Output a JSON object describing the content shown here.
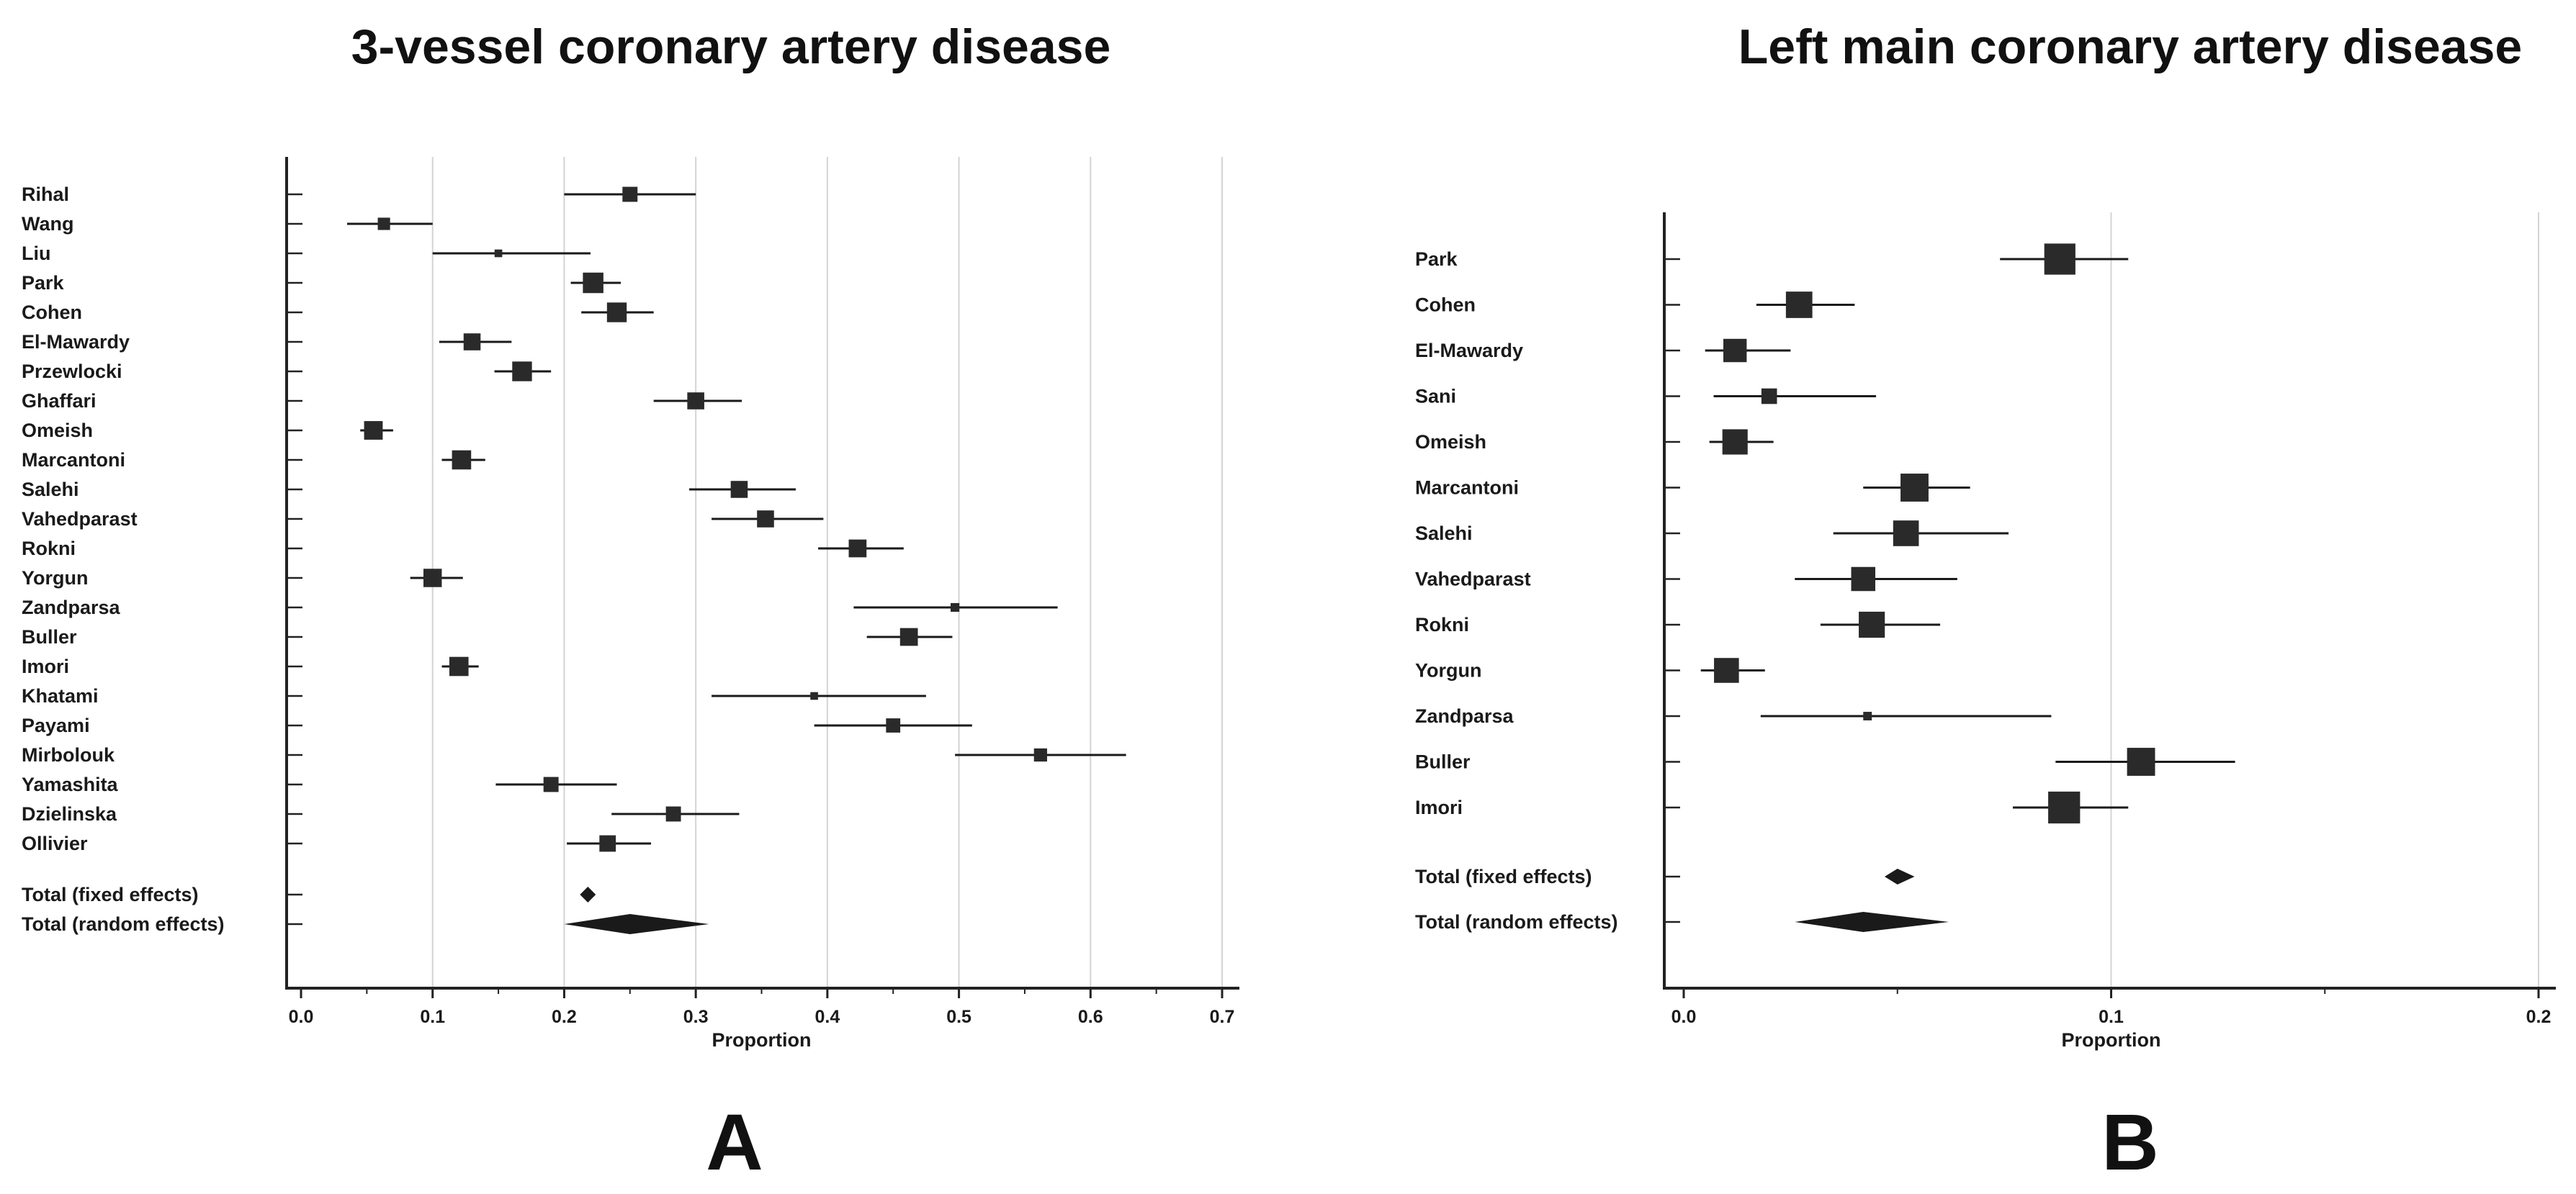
{
  "chart_data": [
    {
      "type": "forest",
      "panel_label": "A",
      "title": "3-vessel coronary artery disease",
      "xlabel": "Proportion",
      "xlim": [
        0,
        0.72
      ],
      "xticks": [
        "0.0",
        "0.1",
        "0.2",
        "0.3",
        "0.4",
        "0.5",
        "0.6",
        "0.7"
      ],
      "grid": "vertical",
      "studies": [
        {
          "name": "Rihal",
          "estimate": 0.25,
          "ci": [
            0.2,
            0.3
          ]
        },
        {
          "name": "Wang",
          "estimate": 0.063,
          "ci": [
            0.035,
            0.1
          ]
        },
        {
          "name": "Liu",
          "estimate": 0.15,
          "ci": [
            0.1,
            0.22
          ]
        },
        {
          "name": "Park",
          "estimate": 0.222,
          "ci": [
            0.205,
            0.243
          ]
        },
        {
          "name": "Cohen",
          "estimate": 0.24,
          "ci": [
            0.213,
            0.268
          ]
        },
        {
          "name": "El-Mawardy",
          "estimate": 0.13,
          "ci": [
            0.105,
            0.16
          ]
        },
        {
          "name": "Przewlocki",
          "estimate": 0.168,
          "ci": [
            0.147,
            0.19
          ]
        },
        {
          "name": "Ghaffari",
          "estimate": 0.3,
          "ci": [
            0.268,
            0.335
          ]
        },
        {
          "name": "Omeish",
          "estimate": 0.055,
          "ci": [
            0.045,
            0.07
          ]
        },
        {
          "name": "Marcantoni",
          "estimate": 0.122,
          "ci": [
            0.107,
            0.14
          ]
        },
        {
          "name": "Salehi",
          "estimate": 0.333,
          "ci": [
            0.295,
            0.376
          ]
        },
        {
          "name": "Vahedparast",
          "estimate": 0.353,
          "ci": [
            0.312,
            0.397
          ]
        },
        {
          "name": "Rokni",
          "estimate": 0.423,
          "ci": [
            0.393,
            0.458
          ]
        },
        {
          "name": "Yorgun",
          "estimate": 0.1,
          "ci": [
            0.083,
            0.123
          ]
        },
        {
          "name": "Zandparsa",
          "estimate": 0.497,
          "ci": [
            0.42,
            0.575
          ]
        },
        {
          "name": "Buller",
          "estimate": 0.462,
          "ci": [
            0.43,
            0.495
          ]
        },
        {
          "name": "Imori",
          "estimate": 0.12,
          "ci": [
            0.107,
            0.135
          ]
        },
        {
          "name": "Khatami",
          "estimate": 0.39,
          "ci": [
            0.312,
            0.475
          ]
        },
        {
          "name": "Payami",
          "estimate": 0.45,
          "ci": [
            0.39,
            0.51
          ]
        },
        {
          "name": "Mirbolouk",
          "estimate": 0.562,
          "ci": [
            0.497,
            0.627
          ]
        },
        {
          "name": "Yamashita",
          "estimate": 0.19,
          "ci": [
            0.148,
            0.24
          ]
        },
        {
          "name": "Dzielinska",
          "estimate": 0.283,
          "ci": [
            0.236,
            0.333
          ]
        },
        {
          "name": "Ollivier",
          "estimate": 0.233,
          "ci": [
            0.202,
            0.266
          ]
        }
      ],
      "weights": [
        0.55,
        0.45,
        0.28,
        0.75,
        0.72,
        0.62,
        0.72,
        0.62,
        0.68,
        0.7,
        0.62,
        0.62,
        0.65,
        0.67,
        0.32,
        0.65,
        0.7,
        0.28,
        0.52,
        0.48,
        0.55,
        0.55,
        0.6
      ],
      "summaries": [
        {
          "name": "Total (fixed effects)",
          "estimate": 0.218,
          "ci": [
            0.212,
            0.224
          ]
        },
        {
          "name": "Total (random effects)",
          "estimate": 0.25,
          "ci": [
            0.2,
            0.31
          ]
        }
      ]
    },
    {
      "type": "forest",
      "panel_label": "B",
      "title": "Left main coronary artery disease",
      "xlabel": "Proportion",
      "xlim": [
        0,
        0.205
      ],
      "xticks": [
        "0.0",
        "0.1",
        "0.2"
      ],
      "grid": "vertical",
      "studies": [
        {
          "name": "Park",
          "estimate": 0.088,
          "ci": [
            0.074,
            0.104
          ]
        },
        {
          "name": "Cohen",
          "estimate": 0.027,
          "ci": [
            0.017,
            0.04
          ]
        },
        {
          "name": "El-Mawardy",
          "estimate": 0.012,
          "ci": [
            0.005,
            0.025
          ]
        },
        {
          "name": "Sani",
          "estimate": 0.02,
          "ci": [
            0.007,
            0.045
          ]
        },
        {
          "name": "Omeish",
          "estimate": 0.012,
          "ci": [
            0.006,
            0.021
          ]
        },
        {
          "name": "Marcantoni",
          "estimate": 0.054,
          "ci": [
            0.042,
            0.067
          ]
        },
        {
          "name": "Salehi",
          "estimate": 0.052,
          "ci": [
            0.035,
            0.076
          ]
        },
        {
          "name": "Vahedparast",
          "estimate": 0.042,
          "ci": [
            0.026,
            0.064
          ]
        },
        {
          "name": "Rokni",
          "estimate": 0.044,
          "ci": [
            0.032,
            0.06
          ]
        },
        {
          "name": "Yorgun",
          "estimate": 0.01,
          "ci": [
            0.004,
            0.019
          ]
        },
        {
          "name": "Zandparsa",
          "estimate": 0.043,
          "ci": [
            0.018,
            0.086
          ]
        },
        {
          "name": "Buller",
          "estimate": 0.107,
          "ci": [
            0.087,
            0.129
          ]
        },
        {
          "name": "Imori",
          "estimate": 0.089,
          "ci": [
            0.077,
            0.104
          ]
        }
      ],
      "weights": [
        0.8,
        0.68,
        0.6,
        0.4,
        0.65,
        0.72,
        0.66,
        0.62,
        0.67,
        0.64,
        0.22,
        0.72,
        0.82
      ],
      "summaries": [
        {
          "name": "Total (fixed effects)",
          "estimate": 0.05,
          "ci": [
            0.047,
            0.054
          ]
        },
        {
          "name": "Total (random effects)",
          "estimate": 0.042,
          "ci": [
            0.026,
            0.062
          ]
        }
      ]
    }
  ]
}
